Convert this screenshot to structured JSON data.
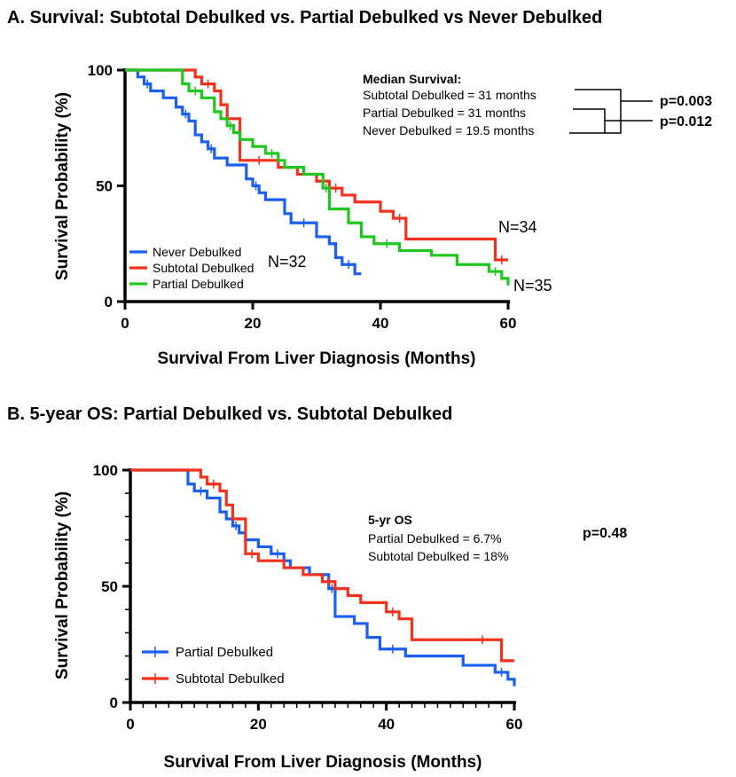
{
  "colors": {
    "never": "#1a5ff0",
    "subtotal": "#f0321e",
    "partial": "#1ec81e",
    "axis": "#000000"
  },
  "chart_data": [
    {
      "type": "line",
      "title": "A.  Survival: Subtotal Debulked vs. Partial Debulked vs Never Debulked",
      "xlabel": "Survival From Liver Diagnosis (Months)",
      "ylabel": "Survival Probability (%)",
      "xlim": [
        0,
        60
      ],
      "ylim": [
        0,
        100
      ],
      "xticks": [
        "0",
        "20",
        "40",
        "60"
      ],
      "yticks": [
        "0",
        "50",
        "100"
      ],
      "legend_position": "bottom-left",
      "series": [
        {
          "name": "Never Debulked",
          "color_key": "never",
          "x": [
            0,
            2,
            3,
            4,
            6,
            8,
            9,
            10,
            11,
            12,
            13,
            14,
            16,
            19,
            20,
            21,
            22,
            25,
            26,
            30,
            32,
            33,
            34,
            36,
            37
          ],
          "y": [
            100,
            97,
            94,
            91,
            88,
            84,
            81,
            78,
            72,
            69,
            66,
            62,
            59,
            53,
            50,
            47,
            44,
            38,
            34,
            28,
            25,
            19,
            16,
            12,
            12
          ]
        },
        {
          "name": "Subtotal Debulked",
          "color_key": "subtotal",
          "x": [
            0,
            11,
            12,
            14,
            15,
            16,
            18,
            24,
            27,
            30,
            32,
            34,
            36,
            40,
            42,
            44,
            50,
            52,
            58,
            60
          ],
          "y": [
            100,
            97,
            94,
            91,
            85,
            79,
            61,
            58,
            55,
            52,
            49,
            46,
            43,
            39,
            36,
            27,
            27,
            27,
            18,
            18
          ]
        },
        {
          "name": "Partial Debulked",
          "color_key": "partial",
          "x": [
            0,
            9,
            10,
            12,
            14,
            15,
            16,
            17,
            18,
            20,
            22,
            24,
            25,
            28,
            31,
            32,
            35,
            37,
            39,
            43,
            48,
            52,
            57,
            59,
            60
          ],
          "y": [
            100,
            94,
            91,
            88,
            82,
            79,
            76,
            73,
            70,
            67,
            64,
            61,
            58,
            55,
            49,
            40,
            34,
            28,
            25,
            22,
            20,
            16,
            13,
            10,
            7
          ]
        }
      ],
      "annotations": {
        "n_never": "N=32",
        "n_subtotal": "N=34",
        "n_partial": "N=35",
        "median_title": "Median Survival:",
        "median_lines": [
          "Subtotal Debulked = 31 months",
          "Partial Debulked = 31 months",
          "Never Debulked = 19.5 months"
        ],
        "p_values": [
          "p=0.003",
          "p=0.012"
        ]
      }
    },
    {
      "type": "line",
      "title": "B.   5-year OS: Partial Debulked vs. Subtotal Debulked",
      "xlabel": "Survival From Liver Diagnosis (Months)",
      "ylabel": "Survival Probability (%)",
      "xlim": [
        0,
        60
      ],
      "ylim": [
        0,
        100
      ],
      "xticks": [
        "0",
        "20",
        "40",
        "60"
      ],
      "yticks": [
        "0",
        "50",
        "100"
      ],
      "legend_position": "bottom-left",
      "series": [
        {
          "name": "Partial Debulked",
          "color_key": "never",
          "x": [
            0,
            9,
            10,
            12,
            14,
            15,
            16,
            17,
            18,
            20,
            22,
            24,
            25,
            28,
            31,
            32,
            35,
            37,
            39,
            43,
            48,
            52,
            57,
            59,
            60
          ],
          "y": [
            100,
            94,
            91,
            88,
            82,
            79,
            76,
            73,
            70,
            67,
            64,
            61,
            58,
            55,
            49,
            37,
            34,
            28,
            23,
            20,
            20,
            16,
            13,
            10,
            7
          ]
        },
        {
          "name": "Subtotal Debulked",
          "color_key": "subtotal",
          "x": [
            0,
            11,
            12,
            14,
            15,
            16,
            18,
            20,
            24,
            27,
            30,
            32,
            34,
            36,
            40,
            42,
            44,
            50,
            52,
            58,
            60
          ],
          "y": [
            100,
            97,
            94,
            91,
            85,
            79,
            64,
            61,
            58,
            55,
            52,
            49,
            46,
            43,
            39,
            36,
            27,
            27,
            27,
            18,
            18
          ]
        }
      ],
      "annotations": {
        "os_title": "5-yr OS",
        "os_lines": [
          "Partial Debulked = 6.7%",
          "Subtotal Debulked = 18%"
        ],
        "p_value": "p=0.48"
      }
    }
  ]
}
